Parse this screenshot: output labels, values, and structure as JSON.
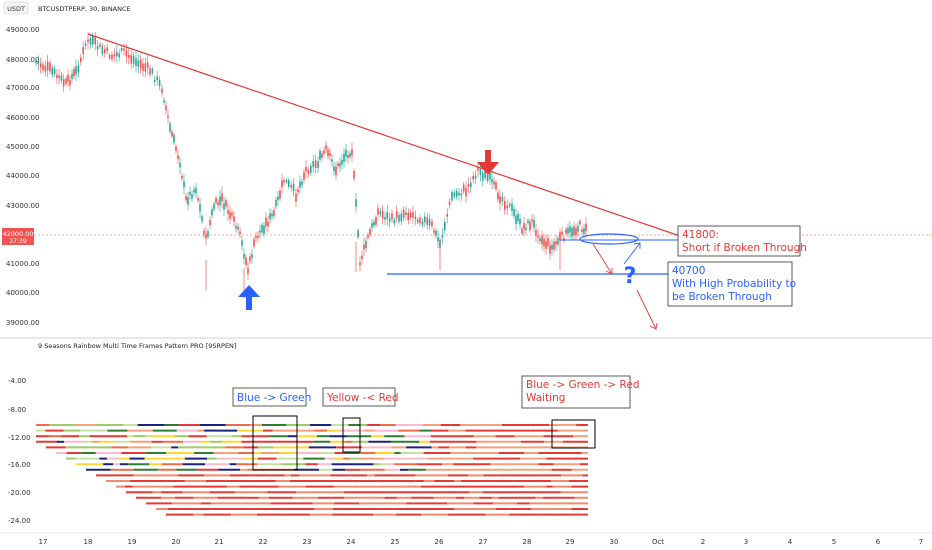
{
  "header": {
    "currency": "USDT",
    "symbol": "BTCUSDTPERP, 30, BINANCE"
  },
  "price_axis": {
    "labels": [
      "49000.00",
      "48000.00",
      "47000.00",
      "46000.00",
      "45000.00",
      "44000.00",
      "43000.00",
      "41000.00",
      "40000.00",
      "39000.00"
    ],
    "current_price": "42000.00",
    "countdown": "27:39"
  },
  "indicator": {
    "title": "9 Seasons Rainbow Multi Time Frames Pattern PRO [9SRPEN]",
    "axis_labels": [
      "-4.00",
      "-8.00",
      "-12.00",
      "-16.00",
      "-20.00",
      "-24.00"
    ]
  },
  "time_axis": {
    "labels": [
      "17",
      "18",
      "19",
      "20",
      "21",
      "22",
      "23",
      "24",
      "25",
      "26",
      "27",
      "28",
      "29",
      "30",
      "Oct",
      "2",
      "3",
      "4",
      "5",
      "6",
      "7"
    ]
  },
  "annotations": {
    "short_price": "41800:",
    "short_text": "Short if Broken Through",
    "support_price": "40700",
    "support_text_1": "With High Probability to",
    "support_text_2": "be Broken Through",
    "question_mark": "?",
    "label_blue_green": "Blue -> Green",
    "label_yellow_red": "Yellow -< Red",
    "label_waiting_1": "Blue -> Green -> Red",
    "label_waiting_2": "Waiting"
  },
  "colors": {
    "trendline": "#e53935",
    "support": "#2962ff",
    "up_candle": "#26a69a",
    "down_candle": "#ef5350",
    "arrow_up": "#2962ff",
    "arrow_down": "#e53935"
  }
}
